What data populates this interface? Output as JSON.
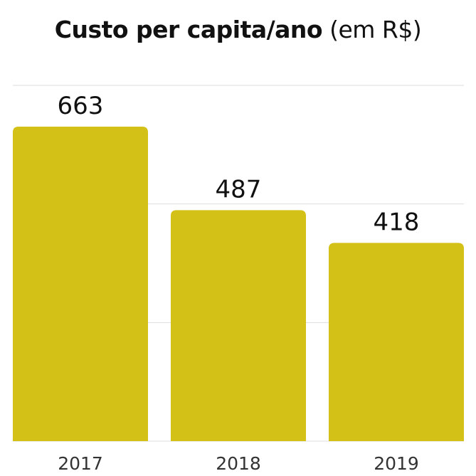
{
  "chart_data": {
    "type": "bar",
    "title": "Custo per capita/ano",
    "title_suffix": "(em R$)",
    "categories": [
      "2017",
      "2018",
      "2019"
    ],
    "values": [
      663,
      487,
      418
    ],
    "data_labels": [
      "663",
      "487",
      "418"
    ],
    "ylim": [
      0,
      750
    ],
    "grid": true,
    "bar_color": "#d4c118",
    "grid_color": "#dddddd"
  }
}
